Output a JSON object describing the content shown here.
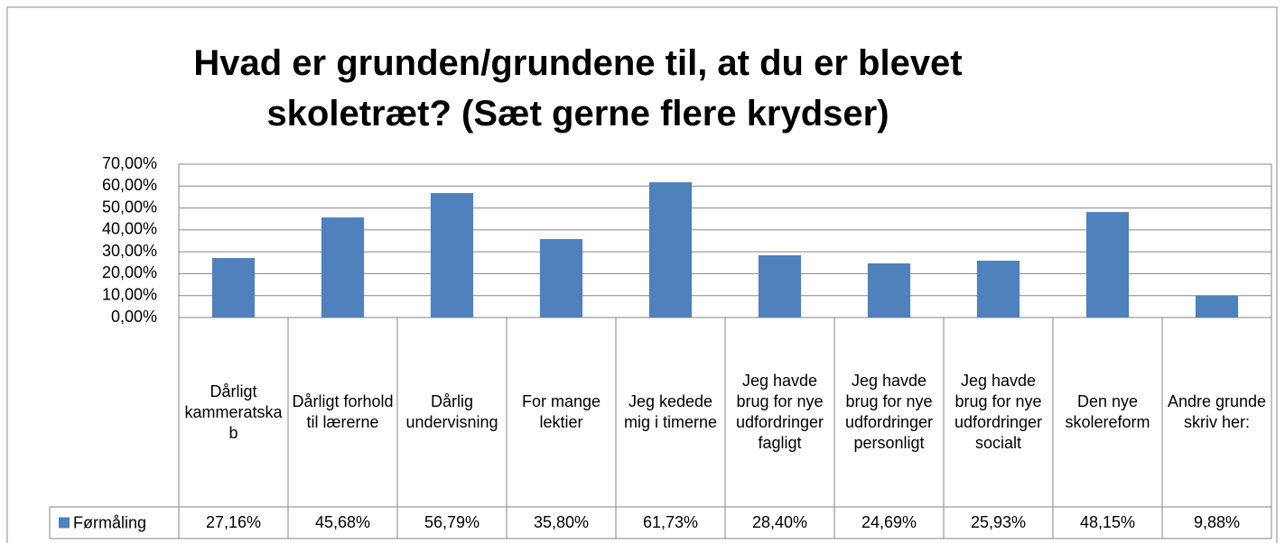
{
  "chart_data": {
    "type": "bar",
    "title": "Hvad er grunden/grundene til, at du er blevet skoletræt? (Sæt gerne flere krydser)",
    "categories": [
      "Dårligt kammeratskab",
      "Dårligt forhold til lærerne",
      "Dårlig undervisning",
      "For mange lektier",
      "Jeg kedede mig i timerne",
      "Jeg havde brug for nye udfordringer fagligt",
      "Jeg havde brug for nye udfordringer personligt",
      "Jeg havde brug for nye udfordringer socialt",
      "Den nye skolereform",
      "Andre grunde skriv her:"
    ],
    "series": [
      {
        "name": "Førmåling",
        "color": "#4f81bd",
        "values": [
          27.16,
          45.68,
          56.79,
          35.8,
          61.73,
          28.4,
          24.69,
          25.93,
          48.15,
          9.88
        ],
        "value_labels": [
          "27,16%",
          "45,68%",
          "56,79%",
          "35,80%",
          "61,73%",
          "28,40%",
          "24,69%",
          "25,93%",
          "48,15%",
          "9,88%"
        ]
      }
    ],
    "ylim": [
      0,
      70
    ],
    "yticks": [
      {
        "value": 0,
        "label": "0,00%"
      },
      {
        "value": 10,
        "label": "10,00%"
      },
      {
        "value": 20,
        "label": "20,00%"
      },
      {
        "value": 30,
        "label": "30,00%"
      },
      {
        "value": 40,
        "label": "40,00%"
      },
      {
        "value": 50,
        "label": "50,00%"
      },
      {
        "value": 60,
        "label": "60,00%"
      },
      {
        "value": 70,
        "label": "70,00%"
      }
    ],
    "grid": true
  }
}
